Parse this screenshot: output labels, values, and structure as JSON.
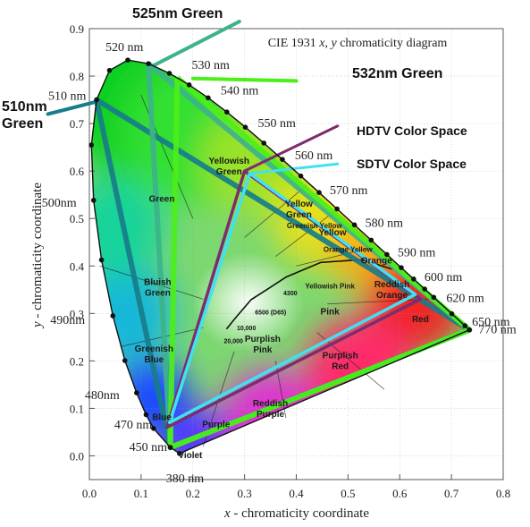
{
  "chart_data": {
    "type": "scatter",
    "title": "CIE 1931 x, y chromaticity diagram",
    "title_parts": [
      "CIE 1931 ",
      "x",
      ", ",
      "y",
      " chromaticity diagram"
    ],
    "xlabel_parts": [
      "x",
      " - chromaticity coordinate"
    ],
    "ylabel_parts": [
      "y",
      " - chromaticity coordinate"
    ],
    "xlim": [
      0.0,
      0.8
    ],
    "ylim": [
      -0.05,
      0.9
    ],
    "xticks": [
      "0.0",
      "0.1",
      "0.2",
      "0.3",
      "0.4",
      "0.5",
      "0.6",
      "0.7",
      "0.8"
    ],
    "xtick_values": [
      0.0,
      0.1,
      0.2,
      0.3,
      0.4,
      0.5,
      0.6,
      0.7,
      0.8
    ],
    "yticks": [
      "0.0",
      "0.1",
      "0.2",
      "0.3",
      "0.4",
      "0.5",
      "0.6",
      "0.7",
      "0.8",
      "0.9"
    ],
    "ytick_values": [
      0.0,
      0.1,
      0.2,
      0.3,
      0.4,
      0.5,
      0.6,
      0.7,
      0.8,
      0.9
    ],
    "grid": true,
    "spectral_locus": [
      {
        "x": 0.1741,
        "y": 0.005,
        "label": "380 nm"
      },
      {
        "x": 0.1566,
        "y": 0.0177,
        "label": "450 nm"
      },
      {
        "x": 0.1241,
        "y": 0.0578,
        "label": "470 nm"
      },
      {
        "x": 0.1096,
        "y": 0.0868
      },
      {
        "x": 0.0913,
        "y": 0.1327,
        "label": "480 nm"
      },
      {
        "x": 0.0687,
        "y": 0.2007
      },
      {
        "x": 0.0454,
        "y": 0.295,
        "label": "490 nm"
      },
      {
        "x": 0.0235,
        "y": 0.4127
      },
      {
        "x": 0.0082,
        "y": 0.5384,
        "label": "500 nm"
      },
      {
        "x": 0.0039,
        "y": 0.6548
      },
      {
        "x": 0.0139,
        "y": 0.7502,
        "label": "510 nm"
      },
      {
        "x": 0.0389,
        "y": 0.812
      },
      {
        "x": 0.0743,
        "y": 0.8338,
        "label": "520 nm"
      },
      {
        "x": 0.1142,
        "y": 0.8262
      },
      {
        "x": 0.1547,
        "y": 0.8059,
        "label": "530 nm"
      },
      {
        "x": 0.1929,
        "y": 0.7816
      },
      {
        "x": 0.2296,
        "y": 0.7543,
        "label": "540 nm"
      },
      {
        "x": 0.2658,
        "y": 0.7243
      },
      {
        "x": 0.3016,
        "y": 0.6923,
        "label": "550 nm"
      },
      {
        "x": 0.3373,
        "y": 0.6589
      },
      {
        "x": 0.3731,
        "y": 0.6245,
        "label": "560 nm"
      },
      {
        "x": 0.4087,
        "y": 0.5896
      },
      {
        "x": 0.4441,
        "y": 0.5547,
        "label": "570 nm"
      },
      {
        "x": 0.4788,
        "y": 0.5202
      },
      {
        "x": 0.5125,
        "y": 0.4866,
        "label": "580 nm"
      },
      {
        "x": 0.5448,
        "y": 0.4544
      },
      {
        "x": 0.5752,
        "y": 0.4242,
        "label": "590 nm"
      },
      {
        "x": 0.6029,
        "y": 0.3965
      },
      {
        "x": 0.627,
        "y": 0.3725,
        "label": "600 nm"
      },
      {
        "x": 0.6482,
        "y": 0.3514
      },
      {
        "x": 0.6658,
        "y": 0.334,
        "label": "620 nm"
      },
      {
        "x": 0.7006,
        "y": 0.2993
      },
      {
        "x": 0.726,
        "y": 0.274,
        "label": "650 nm"
      },
      {
        "x": 0.7347,
        "y": 0.2653,
        "label": "770 nm"
      }
    ],
    "gamut_triangles": [
      {
        "name": "HDTV Color Space",
        "color": "#7b2d6f",
        "points": [
          [
            0.64,
            0.33
          ],
          [
            0.3,
            0.6
          ],
          [
            0.15,
            0.06
          ]
        ]
      },
      {
        "name": "SDTV Color Space",
        "color": "#41e1f2",
        "points": [
          [
            0.63,
            0.34
          ],
          [
            0.31,
            0.595
          ],
          [
            0.155,
            0.07
          ]
        ]
      }
    ],
    "primary_lines": [
      {
        "label": "510nm Green",
        "color": "#177d8a",
        "points": [
          [
            0.0139,
            0.7502
          ],
          [
            0.7347,
            0.2653
          ],
          [
            0.1566,
            0.0177
          ],
          [
            0.0139,
            0.7502
          ]
        ]
      },
      {
        "label": "525nm Green",
        "color": "#3db38a",
        "points": [
          [
            0.1142,
            0.8262
          ],
          [
            0.7347,
            0.2653
          ],
          [
            0.1566,
            0.0177
          ],
          [
            0.1142,
            0.8262
          ]
        ]
      },
      {
        "label": "532nm Green",
        "color": "#4cef18",
        "points": [
          [
            0.17,
            0.7966
          ],
          [
            0.7347,
            0.2653
          ],
          [
            0.1566,
            0.0177
          ],
          [
            0.17,
            0.7966
          ]
        ]
      }
    ],
    "planckian_locus": [
      [
        0.5857,
        0.3931
      ],
      [
        0.5267,
        0.4133
      ],
      [
        0.4476,
        0.4074
      ],
      [
        0.3805,
        0.3768
      ],
      [
        0.3451,
        0.3516
      ],
      [
        0.3127,
        0.329
      ],
      [
        0.2807,
        0.2883
      ],
      [
        0.265,
        0.267
      ]
    ],
    "temperature_labels": [
      {
        "label": "4300",
        "x": 0.375,
        "y": 0.338
      },
      {
        "label": "6500 (D65)",
        "x": 0.32,
        "y": 0.298
      },
      {
        "label": "10,000",
        "x": 0.285,
        "y": 0.265
      },
      {
        "label": "20,000",
        "x": 0.26,
        "y": 0.237
      }
    ],
    "region_labels": [
      {
        "label": "Yellowish\nGreen",
        "x": 0.27,
        "y": 0.615
      },
      {
        "label": "Yellow\nGreen",
        "x": 0.405,
        "y": 0.525
      },
      {
        "label": "Green",
        "x": 0.14,
        "y": 0.535
      },
      {
        "label": "Bluish\nGreen",
        "x": 0.132,
        "y": 0.36
      },
      {
        "label": "Greenish\nBlue",
        "x": 0.125,
        "y": 0.22
      },
      {
        "label": "Blue",
        "x": 0.14,
        "y": 0.075
      },
      {
        "label": "Violet",
        "x": 0.195,
        "y": -0.005
      },
      {
        "label": "Purple",
        "x": 0.245,
        "y": 0.06
      },
      {
        "label": "Reddish\nPurple",
        "x": 0.35,
        "y": 0.105
      },
      {
        "label": "Purplish\nRed",
        "x": 0.485,
        "y": 0.205
      },
      {
        "label": "Purplish\nPink",
        "x": 0.335,
        "y": 0.24
      },
      {
        "label": "Pink",
        "x": 0.465,
        "y": 0.298
      },
      {
        "label": "Yellowish Pink",
        "x": 0.465,
        "y": 0.352
      },
      {
        "label": "Reddish\nOrange",
        "x": 0.585,
        "y": 0.355
      },
      {
        "label": "Red",
        "x": 0.64,
        "y": 0.282
      },
      {
        "label": "Orange",
        "x": 0.555,
        "y": 0.405
      },
      {
        "label": "Orange Yellow",
        "x": 0.5,
        "y": 0.43
      },
      {
        "label": "Yellow",
        "x": 0.47,
        "y": 0.465
      },
      {
        "label": "Greenish Yellow",
        "x": 0.435,
        "y": 0.48
      }
    ],
    "annotations": [
      {
        "label": "525nm Green",
        "x": 0.05,
        "y": 0.935
      },
      {
        "label": "532nm Green",
        "x": 0.42,
        "y": 0.79
      },
      {
        "label": "510nm\nGreen",
        "x": -0.33,
        "y": 0.74
      },
      {
        "label": "HDTV Color Space",
        "x": 0.5,
        "y": 0.685
      },
      {
        "label": "SDTV Color Space",
        "x": 0.5,
        "y": 0.605
      }
    ]
  }
}
